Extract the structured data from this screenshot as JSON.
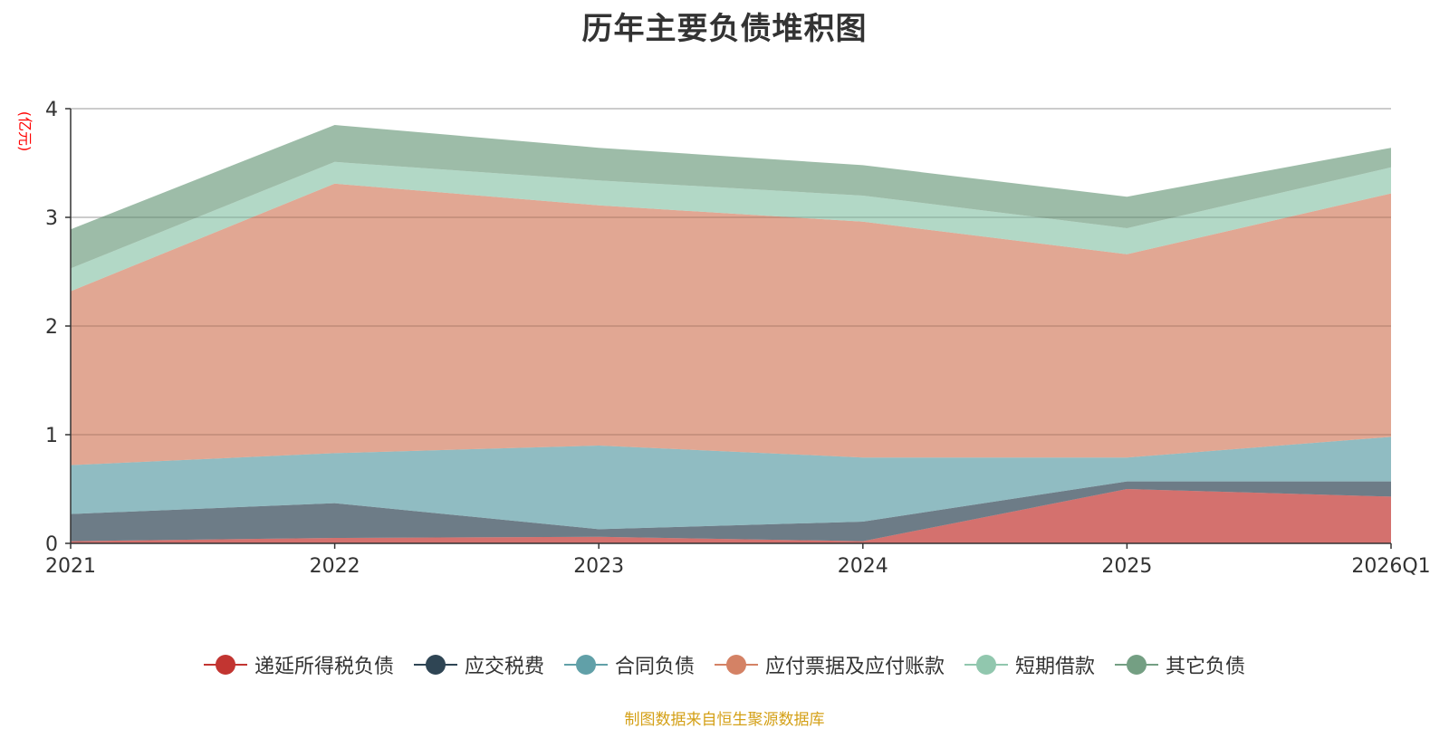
{
  "chart_data": {
    "type": "area",
    "stacked": true,
    "title": "历年主要负债堆积图",
    "ylabel": "(亿元)",
    "xlabel": "",
    "categories": [
      "2021",
      "2022",
      "2023",
      "2024",
      "2025",
      "2026Q1"
    ],
    "ylim": [
      0,
      4
    ],
    "yticks": [
      0,
      1,
      2,
      3,
      4
    ],
    "grid": true,
    "legend_position": "bottom",
    "series": [
      {
        "name": "递延所得税负债",
        "color": "#c23531",
        "values": [
          0.02,
          0.05,
          0.06,
          0.02,
          0.5,
          0.43
        ]
      },
      {
        "name": "应交税费",
        "color": "#2f4554",
        "values": [
          0.25,
          0.32,
          0.07,
          0.18,
          0.07,
          0.14
        ]
      },
      {
        "name": "合同负债",
        "color": "#61a0a8",
        "values": [
          0.45,
          0.46,
          0.77,
          0.59,
          0.22,
          0.41
        ]
      },
      {
        "name": "应付票据及应付账款",
        "color": "#d48265",
        "values": [
          1.6,
          2.48,
          2.21,
          2.17,
          1.87,
          2.24
        ]
      },
      {
        "name": "短期借款",
        "color": "#91c7ae",
        "values": [
          0.21,
          0.2,
          0.23,
          0.24,
          0.24,
          0.24
        ]
      },
      {
        "name": "其它负债",
        "color": "#749f83",
        "values": [
          0.36,
          0.34,
          0.3,
          0.28,
          0.29,
          0.18
        ]
      }
    ]
  },
  "footer": "制图数据来自恒生聚源数据库"
}
